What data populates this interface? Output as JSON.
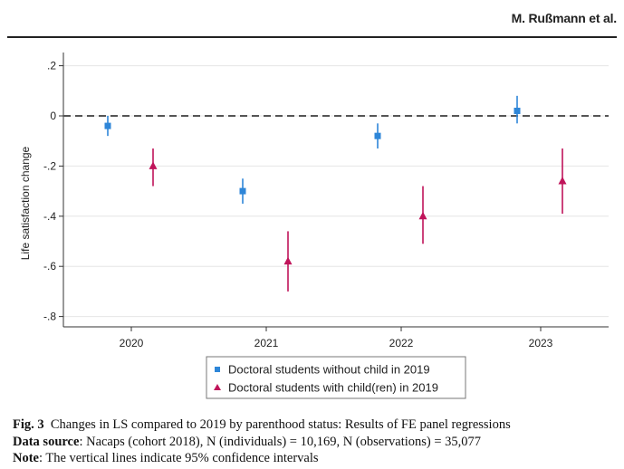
{
  "header": {
    "author": "M. Rußmann et al."
  },
  "chart_data": {
    "type": "scatter",
    "ylabel": "Life satisfaction change",
    "xlabel": "",
    "ylim": [
      -0.83,
      0.23
    ],
    "yticks": [
      0.2,
      0,
      -0.2,
      -0.4,
      -0.6,
      -0.8
    ],
    "ytick_labels": [
      ".2",
      "0",
      "-.2",
      "-.4",
      "-.6",
      "-.8"
    ],
    "categories": [
      "2020",
      "2021",
      "2022",
      "2023"
    ],
    "reference_line": 0,
    "grid": true,
    "legend_position": "bottom",
    "series": [
      {
        "name": "Doctoral students without child in 2019",
        "marker": "square",
        "color": "#2e86d8",
        "values": [
          -0.04,
          -0.3,
          -0.08,
          0.02
        ],
        "ci_low": [
          -0.08,
          -0.35,
          -0.13,
          -0.03
        ],
        "ci_high": [
          0.0,
          -0.25,
          -0.03,
          0.08
        ]
      },
      {
        "name": "Doctoral students with child(ren) in 2019",
        "marker": "triangle",
        "color": "#c0145a",
        "values": [
          -0.2,
          -0.58,
          -0.4,
          -0.26
        ],
        "ci_low": [
          -0.28,
          -0.7,
          -0.51,
          -0.39
        ],
        "ci_high": [
          -0.13,
          -0.46,
          -0.28,
          -0.13
        ]
      }
    ]
  },
  "caption": {
    "fig_label": "Fig. 3",
    "fig_text": "Changes in LS compared to 2019 by parenthood status: Results of FE panel regressions",
    "source_label": "Data source",
    "source_text": ": Nacaps (cohort 2018), N (individuals) = 10,169, N (observations) = 35,077",
    "note_label": "Note",
    "note_text": ": The vertical lines indicate 95% confidence intervals"
  }
}
